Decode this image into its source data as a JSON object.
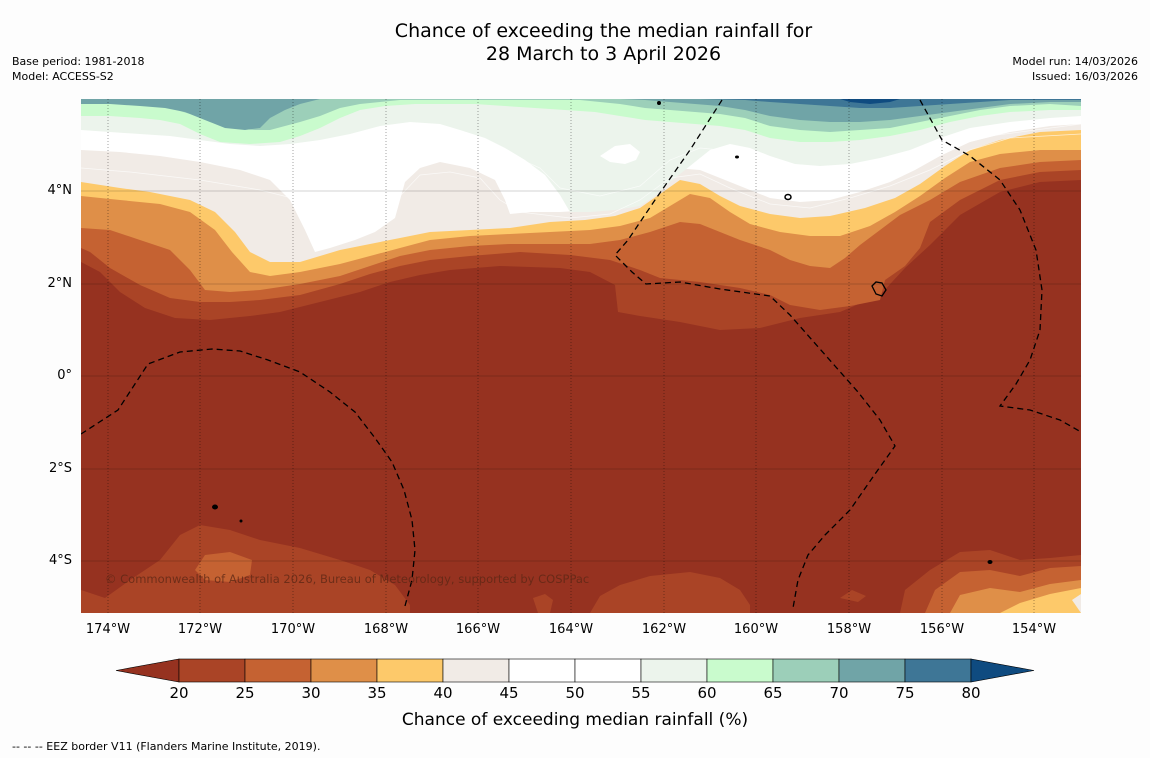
{
  "title": {
    "line1": "Chance of exceeding the median rainfall for",
    "line2": "28 March to 3 April 2026"
  },
  "info_left": {
    "base_period": "Base period: 1981-2018",
    "model": "Model: ACCESS-S2"
  },
  "info_right": {
    "model_run": "Model run: 14/03/2026",
    "issued": "Issued: 16/03/2026"
  },
  "map": {
    "longitude_labels": [
      "174°W",
      "172°W",
      "170°W",
      "168°W",
      "166°W",
      "164°W",
      "162°W",
      "160°W",
      "158°W",
      "156°W",
      "154°W"
    ],
    "latitude_labels": [
      "4°N",
      "2°N",
      "0°",
      "2°S",
      "4°S"
    ],
    "copyright": "© Commonwealth of Australia 2026, Bureau of Meteorology, supported by COSPPac"
  },
  "colorbar": {
    "label": "Chance of exceeding median rainfall (%)",
    "ticks": [
      "20",
      "25",
      "30",
      "35",
      "40",
      "45",
      "50",
      "55",
      "60",
      "65",
      "70",
      "75",
      "80"
    ],
    "under_color": "#963220",
    "over_color": "#0f4b80",
    "colors": [
      "#aa4426",
      "#c56232",
      "#df8f48",
      "#fdc96a",
      "#f1ebe6",
      "#ffffff",
      "#ffffff",
      "#ecf4ec",
      "#c9fbcd",
      "#9ccfb9",
      "#70a4a7",
      "#3e7696"
    ]
  },
  "footnote": "--  --  -- EEZ border V11 (Flanders Marine Institute, 2019)."
}
